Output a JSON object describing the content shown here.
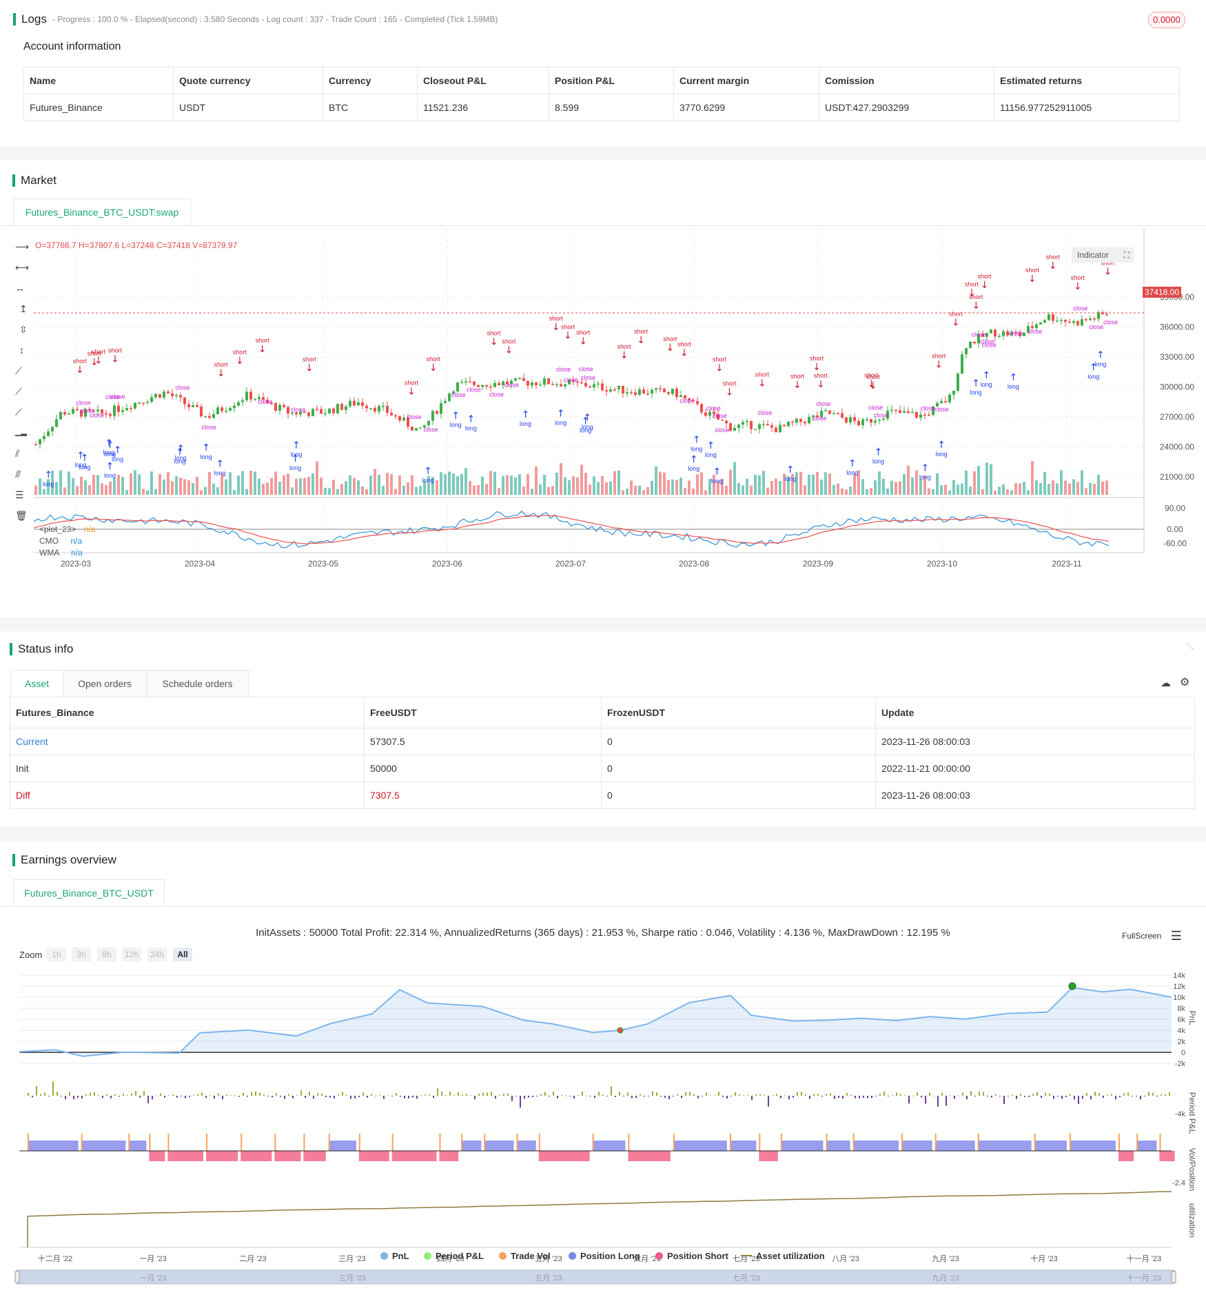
{
  "logs": {
    "title": "Logs",
    "status_line": "- Progress : 100.0 % - Elapsed(second) : 3.580  Seconds - Log count : 337 - Trade Count : 165 - Completed (Tick 1.59MB)",
    "badge": "0.0000"
  },
  "account": {
    "title": "Account information",
    "headers": [
      "Name",
      "Quote currency",
      "Currency",
      "Closeout P&L",
      "Position P&L",
      "Current margin",
      "Comission",
      "Estimated returns"
    ],
    "row": [
      "Futures_Binance",
      "USDT",
      "BTC",
      "11521.236",
      "8.599",
      "3770.6299",
      "USDT:427.2903299",
      "11156.977252911005"
    ]
  },
  "market": {
    "title": "Market",
    "tab": "Futures_Binance_BTC_USDT:swap",
    "ohlc": "O=37766.7  H=37807.6  L=37248  C=37418  V=87379.97",
    "indicator_btn": "Indicator",
    "last_price_label": "37418.00",
    "y_ticks": [
      "39000.00",
      "36000.00",
      "33000.00",
      "30000.00",
      "27000.00",
      "24000.00",
      "21000.00"
    ],
    "x_ticks": [
      "2023-03",
      "2023-04",
      "2023-05",
      "2023-06",
      "2023-07",
      "2023-08",
      "2023-09",
      "2023-10",
      "2023-11"
    ],
    "osc_ticks": [
      "90.00",
      "0.00",
      "-60.00"
    ],
    "osc_legend": [
      {
        "name": "<plot_23>",
        "value": "n/a",
        "color": "#f39c12"
      },
      {
        "name": "CMO",
        "value": "n/a",
        "color": "#2f8fd8"
      },
      {
        "name": "WMA",
        "value": "n/a",
        "color": "#2f8fd8"
      }
    ],
    "colors": {
      "up": "#3fae49",
      "down": "#f04e4e",
      "long": "#1f3ff0",
      "short": "#d0172b",
      "close": "#c71fd6",
      "cmo": "#2f8fd8",
      "wma": "#f04e4e"
    }
  },
  "status": {
    "title": "Status info",
    "tabs": [
      "Asset",
      "Open orders",
      "Schedule orders"
    ],
    "headers": [
      "Futures_Binance",
      "FreeUSDT",
      "FrozenUSDT",
      "Update"
    ],
    "rows": [
      [
        "Current",
        "57307.5",
        "0",
        "2023-11-26 08:00:03"
      ],
      [
        "Init",
        "50000",
        "0",
        "2022-11-21 00:00:00"
      ],
      [
        "Diff",
        "7307.5",
        "0",
        "2023-11-26 08:00:03"
      ]
    ]
  },
  "earnings": {
    "title": "Earnings overview",
    "tab": "Futures_Binance_BTC_USDT",
    "summary": "InitAssets : 50000 Total Profit: 22.314 %, AnnualizedReturns (365 days) : 21.953 %, Sharpe ratio : 0.046, Volatility : 4.136 %, MaxDrawDown : 12.195 %",
    "fullscreen": "FullScreen",
    "zoom_label": "Zoom",
    "zoom_options": [
      "1h",
      "3h",
      "8h",
      "12h",
      "24h",
      "All"
    ],
    "pnl_ticks": [
      "14k",
      "12k",
      "10k",
      "8k",
      "6k",
      "4k",
      "2k",
      "0",
      "-2k"
    ],
    "period_tick": "-4k",
    "vol_tick": "-2.4",
    "axis_labels": [
      "PnL",
      "Period P&L",
      "Vol/Position",
      "utilization"
    ],
    "x_ticks": [
      "十二月 '22",
      "一月 '23",
      "二月 '23",
      "三月 '23",
      "四月 '23",
      "五月 '23",
      "六月 '23",
      "七月 '23",
      "八月 '23",
      "九月 '23",
      "十月 '23",
      "十一月 '23"
    ],
    "nav_ticks": [
      "一月 '23",
      "三月 '23",
      "五月 '23",
      "七月 '23",
      "九月 '23",
      "十一月 '23"
    ],
    "legend": [
      {
        "name": "PnL",
        "color": "#7cb5ec"
      },
      {
        "name": "Period P&L",
        "color": "#90ed7d"
      },
      {
        "name": "Trade Vol",
        "color": "#f7a35c"
      },
      {
        "name": "Position Long",
        "color": "#8085e9"
      },
      {
        "name": "Position Short",
        "color": "#f15c80"
      },
      {
        "name": "Asset utilization",
        "color": "#8d7b3c"
      }
    ]
  }
}
